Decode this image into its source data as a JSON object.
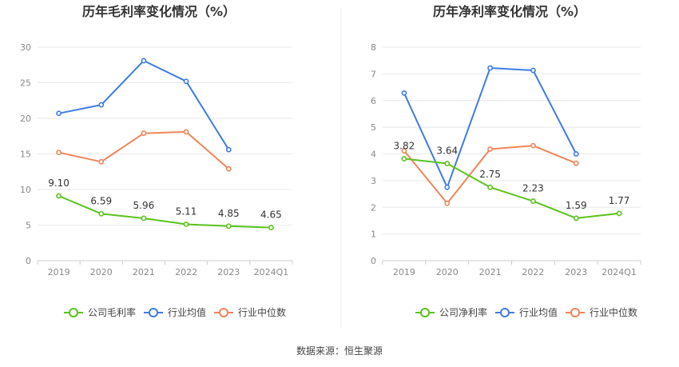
{
  "chart_data": [
    {
      "type": "line",
      "title": "历年毛利率变化情况（%）",
      "categories": [
        "2019",
        "2020",
        "2021",
        "2022",
        "2023",
        "2024Q1"
      ],
      "ylim": [
        0,
        30
      ],
      "yticks": [
        0,
        5,
        10,
        15,
        20,
        25,
        30
      ],
      "grid": true,
      "legend_position": "bottom",
      "series": [
        {
          "name": "公司毛利率",
          "color": "#5ac21e",
          "values": [
            9.1,
            6.59,
            5.96,
            5.11,
            4.85,
            4.65
          ],
          "labels": [
            "9.10",
            "6.59",
            "5.96",
            "5.11",
            "4.85",
            "4.65"
          ]
        },
        {
          "name": "行业均值",
          "color": "#3e7be6",
          "values": [
            20.7,
            21.9,
            28.1,
            25.2,
            15.6,
            null
          ]
        },
        {
          "name": "行业中位数",
          "color": "#f0845a",
          "values": [
            15.2,
            13.9,
            17.9,
            18.1,
            12.9,
            null
          ]
        }
      ]
    },
    {
      "type": "line",
      "title": "历年净利率变化情况（%）",
      "categories": [
        "2019",
        "2020",
        "2021",
        "2022",
        "2023",
        "2024Q1"
      ],
      "ylim": [
        0,
        8
      ],
      "yticks": [
        0,
        1,
        2,
        3,
        4,
        5,
        6,
        7,
        8
      ],
      "grid": true,
      "legend_position": "bottom",
      "series": [
        {
          "name": "公司净利率",
          "color": "#5ac21e",
          "values": [
            3.82,
            3.64,
            2.75,
            2.23,
            1.59,
            1.77
          ],
          "labels": [
            "3.82",
            "3.64",
            "2.75",
            "2.23",
            "1.59",
            "1.77"
          ]
        },
        {
          "name": "行业均值",
          "color": "#3e7be6",
          "values": [
            6.28,
            2.75,
            7.22,
            7.13,
            4.0,
            null
          ]
        },
        {
          "name": "行业中位数",
          "color": "#f0845a",
          "values": [
            4.12,
            2.15,
            4.18,
            4.31,
            3.65,
            null
          ]
        }
      ]
    }
  ],
  "footer": {
    "source": "数据来源：恒生聚源"
  }
}
